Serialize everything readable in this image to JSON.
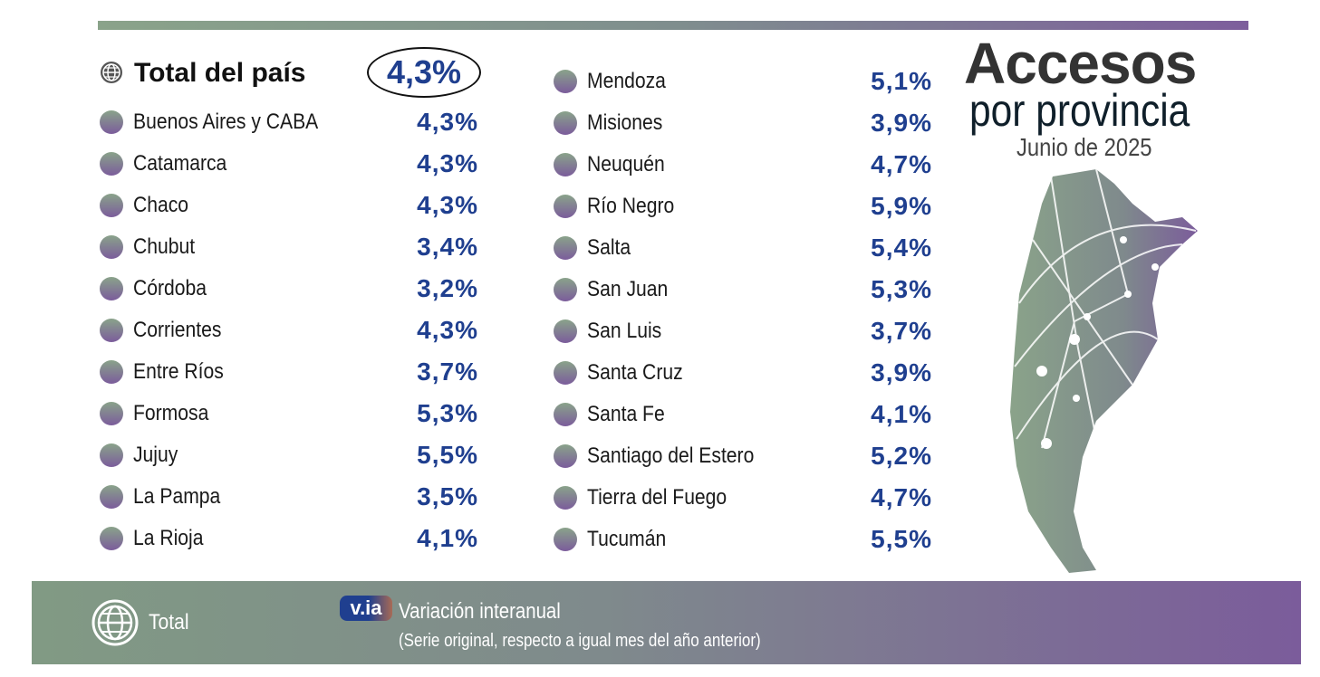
{
  "header": {
    "title": "Accesos",
    "subtitle": "por provincia",
    "date": "Junio de 2025"
  },
  "total": {
    "label": "Total del país",
    "value": "4,3%"
  },
  "chart_data": {
    "type": "table",
    "title": "Accesos por provincia - Junio de 2025",
    "metric": "Variación interanual",
    "columns": [
      "Provincia",
      "Variación interanual"
    ],
    "left": [
      {
        "name": "Buenos Aires y CABA",
        "value": "4,3%"
      },
      {
        "name": "Catamarca",
        "value": "4,3%"
      },
      {
        "name": "Chaco",
        "value": "4,3%"
      },
      {
        "name": "Chubut",
        "value": "3,4%"
      },
      {
        "name": "Córdoba",
        "value": "3,2%"
      },
      {
        "name": "Corrientes",
        "value": "4,3%"
      },
      {
        "name": "Entre Ríos",
        "value": "3,7%"
      },
      {
        "name": "Formosa",
        "value": "5,3%"
      },
      {
        "name": "Jujuy",
        "value": "5,5%"
      },
      {
        "name": "La Pampa",
        "value": "3,5%"
      },
      {
        "name": "La Rioja",
        "value": "4,1%"
      }
    ],
    "right": [
      {
        "name": "Mendoza",
        "value": "5,1%"
      },
      {
        "name": "Misiones",
        "value": "3,9%"
      },
      {
        "name": "Neuquén",
        "value": "4,7%"
      },
      {
        "name": "Río Negro",
        "value": "5,9%"
      },
      {
        "name": "Salta",
        "value": "5,4%"
      },
      {
        "name": "San Juan",
        "value": "5,3%"
      },
      {
        "name": "San Luis",
        "value": "3,7%"
      },
      {
        "name": "Santa Cruz",
        "value": "3,9%"
      },
      {
        "name": "Santa Fe",
        "value": "4,1%"
      },
      {
        "name": "Santiago del Estero",
        "value": "5,2%"
      },
      {
        "name": "Tierra del Fuego",
        "value": "4,7%"
      },
      {
        "name": "Tucumán",
        "value": "5,5%"
      }
    ]
  },
  "legend": {
    "total_label": "Total",
    "badge": "v.ia",
    "title": "Variación interanual",
    "subtitle": "(Serie original, respecto a igual mes del año anterior)"
  },
  "colors": {
    "accent_blue": "#1f3f8f",
    "green": "#8aa38a",
    "purple": "#7b5c9b"
  }
}
